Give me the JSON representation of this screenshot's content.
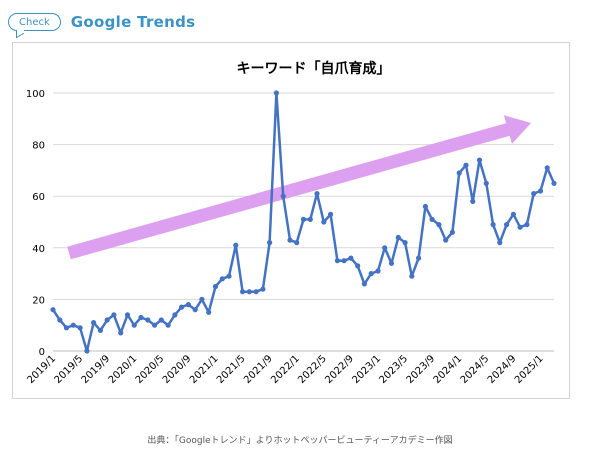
{
  "header": {
    "badge_label": "Check",
    "title": "Google Trends"
  },
  "caption": "出典：「Googleトレンド」よりホットペッパービューティーアカデミー作図",
  "colors": {
    "accent": "#3a92c7",
    "line": "#4472c4",
    "arrow": "#dda0f0",
    "grid": "#d9d9d9"
  },
  "chart_data": {
    "type": "line",
    "title": "キーワード「自爪育成」",
    "ylim": [
      0,
      100
    ],
    "yticks": [
      0,
      20,
      40,
      60,
      80,
      100
    ],
    "xtick_labels": [
      "2019/1",
      "2019/5",
      "2019/9",
      "2020/1",
      "2020/5",
      "2020/9",
      "2021/1",
      "2021/5",
      "2021/9",
      "2022/1",
      "2022/5",
      "2022/9",
      "2023/1",
      "2023/5",
      "2023/9",
      "2024/1",
      "2024/5",
      "2024/9",
      "2025/1"
    ],
    "grid": true,
    "x_start": "2019/1",
    "x_interval": "month",
    "values": [
      16,
      12,
      9,
      10,
      9,
      0,
      11,
      8,
      12,
      14,
      7,
      14,
      10,
      13,
      12,
      10,
      12,
      10,
      14,
      17,
      18,
      16,
      20,
      15,
      25,
      28,
      29,
      41,
      23,
      23,
      23,
      24,
      42,
      100,
      60,
      43,
      42,
      51,
      51,
      61,
      50,
      53,
      35,
      35,
      36,
      33,
      26,
      30,
      31,
      40,
      34,
      44,
      42,
      29,
      36,
      56,
      51,
      49,
      43,
      46,
      69,
      72,
      58,
      74,
      65,
      49,
      42,
      49,
      53,
      48,
      49,
      61,
      62,
      71,
      65
    ],
    "annotation": "upward trend arrow"
  }
}
